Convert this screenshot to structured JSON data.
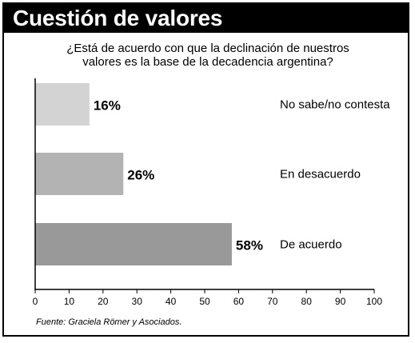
{
  "header": {
    "title": "Cuestión de valores",
    "question_line1": "¿Está de acuerdo con que la declinación de nuestros",
    "question_line2": "valores es la base de la decadencia argentina?"
  },
  "footer": {
    "source": "Fuente: Graciela Römer y Asociados."
  },
  "chart_data": {
    "type": "bar",
    "orientation": "horizontal",
    "categories": [
      "No sabe/no contesta",
      "En desacuerdo",
      "De acuerdo"
    ],
    "values": [
      16,
      26,
      58
    ],
    "data_labels": [
      "16%",
      "26%",
      "58%"
    ],
    "bar_colors": [
      "#d3d3d3",
      "#b3b3b3",
      "#999999"
    ],
    "xlim": [
      0,
      100
    ],
    "xticks": [
      0,
      10,
      20,
      30,
      40,
      50,
      60,
      70,
      80,
      90,
      100
    ],
    "grid": false,
    "legend": "none",
    "title": "Cuestión de valores",
    "xlabel": "",
    "ylabel": ""
  }
}
